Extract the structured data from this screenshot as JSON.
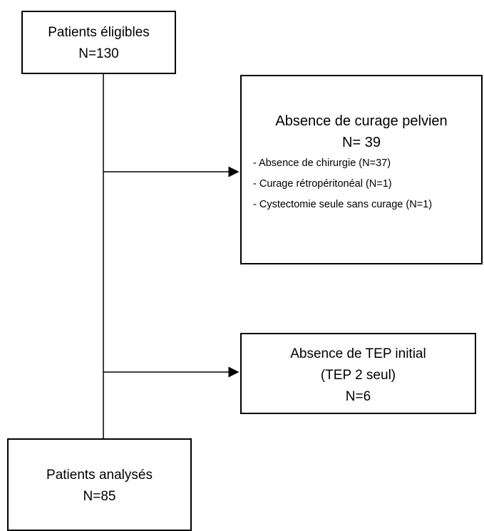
{
  "nodes": [
    {
      "lines": [
        "Patients éligibles",
        "N=130"
      ]
    },
    {
      "lines": [
        "Absence de curage pelvien",
        "N= 39"
      ],
      "items": [
        "- Absence de chirurgie (N=37)",
        "- Curage rétropéritonéal (N=1)",
        "- Cystectomie seule sans curage (N=1)"
      ]
    },
    {
      "lines": [
        "Absence de TEP initial",
        "(TEP 2 seul)",
        "N=6"
      ]
    },
    {
      "lines": [
        "Patients analysés",
        "N=85"
      ]
    }
  ]
}
